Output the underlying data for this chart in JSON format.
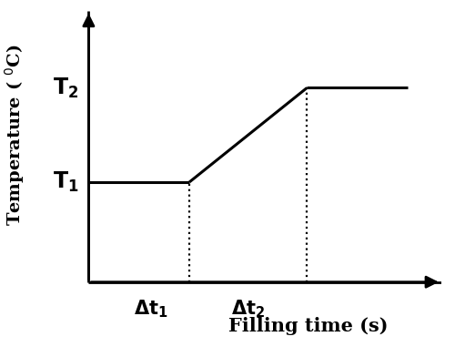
{
  "title": "",
  "xlabel": "Filling time (s)",
  "ylabel_display": "Temperature ( $^0$C)",
  "background_color": "#ffffff",
  "line_color": "#000000",
  "dotted_color": "#000000",
  "x_flat1_start": 0.0,
  "x_flat1_end": 3.0,
  "y_t1": 3.5,
  "x_ramp_start": 3.0,
  "x_ramp_end": 6.5,
  "y_t2": 6.8,
  "x_flat2_start": 6.5,
  "x_flat2_end": 9.5,
  "xlim": [
    -0.2,
    10.5
  ],
  "ylim": [
    -2.0,
    9.5
  ],
  "linewidth": 2.2,
  "dotted_linewidth": 1.6,
  "fontsize_labels": 15,
  "fontsize_axis_labels": 14,
  "fontsize_T_labels": 17
}
